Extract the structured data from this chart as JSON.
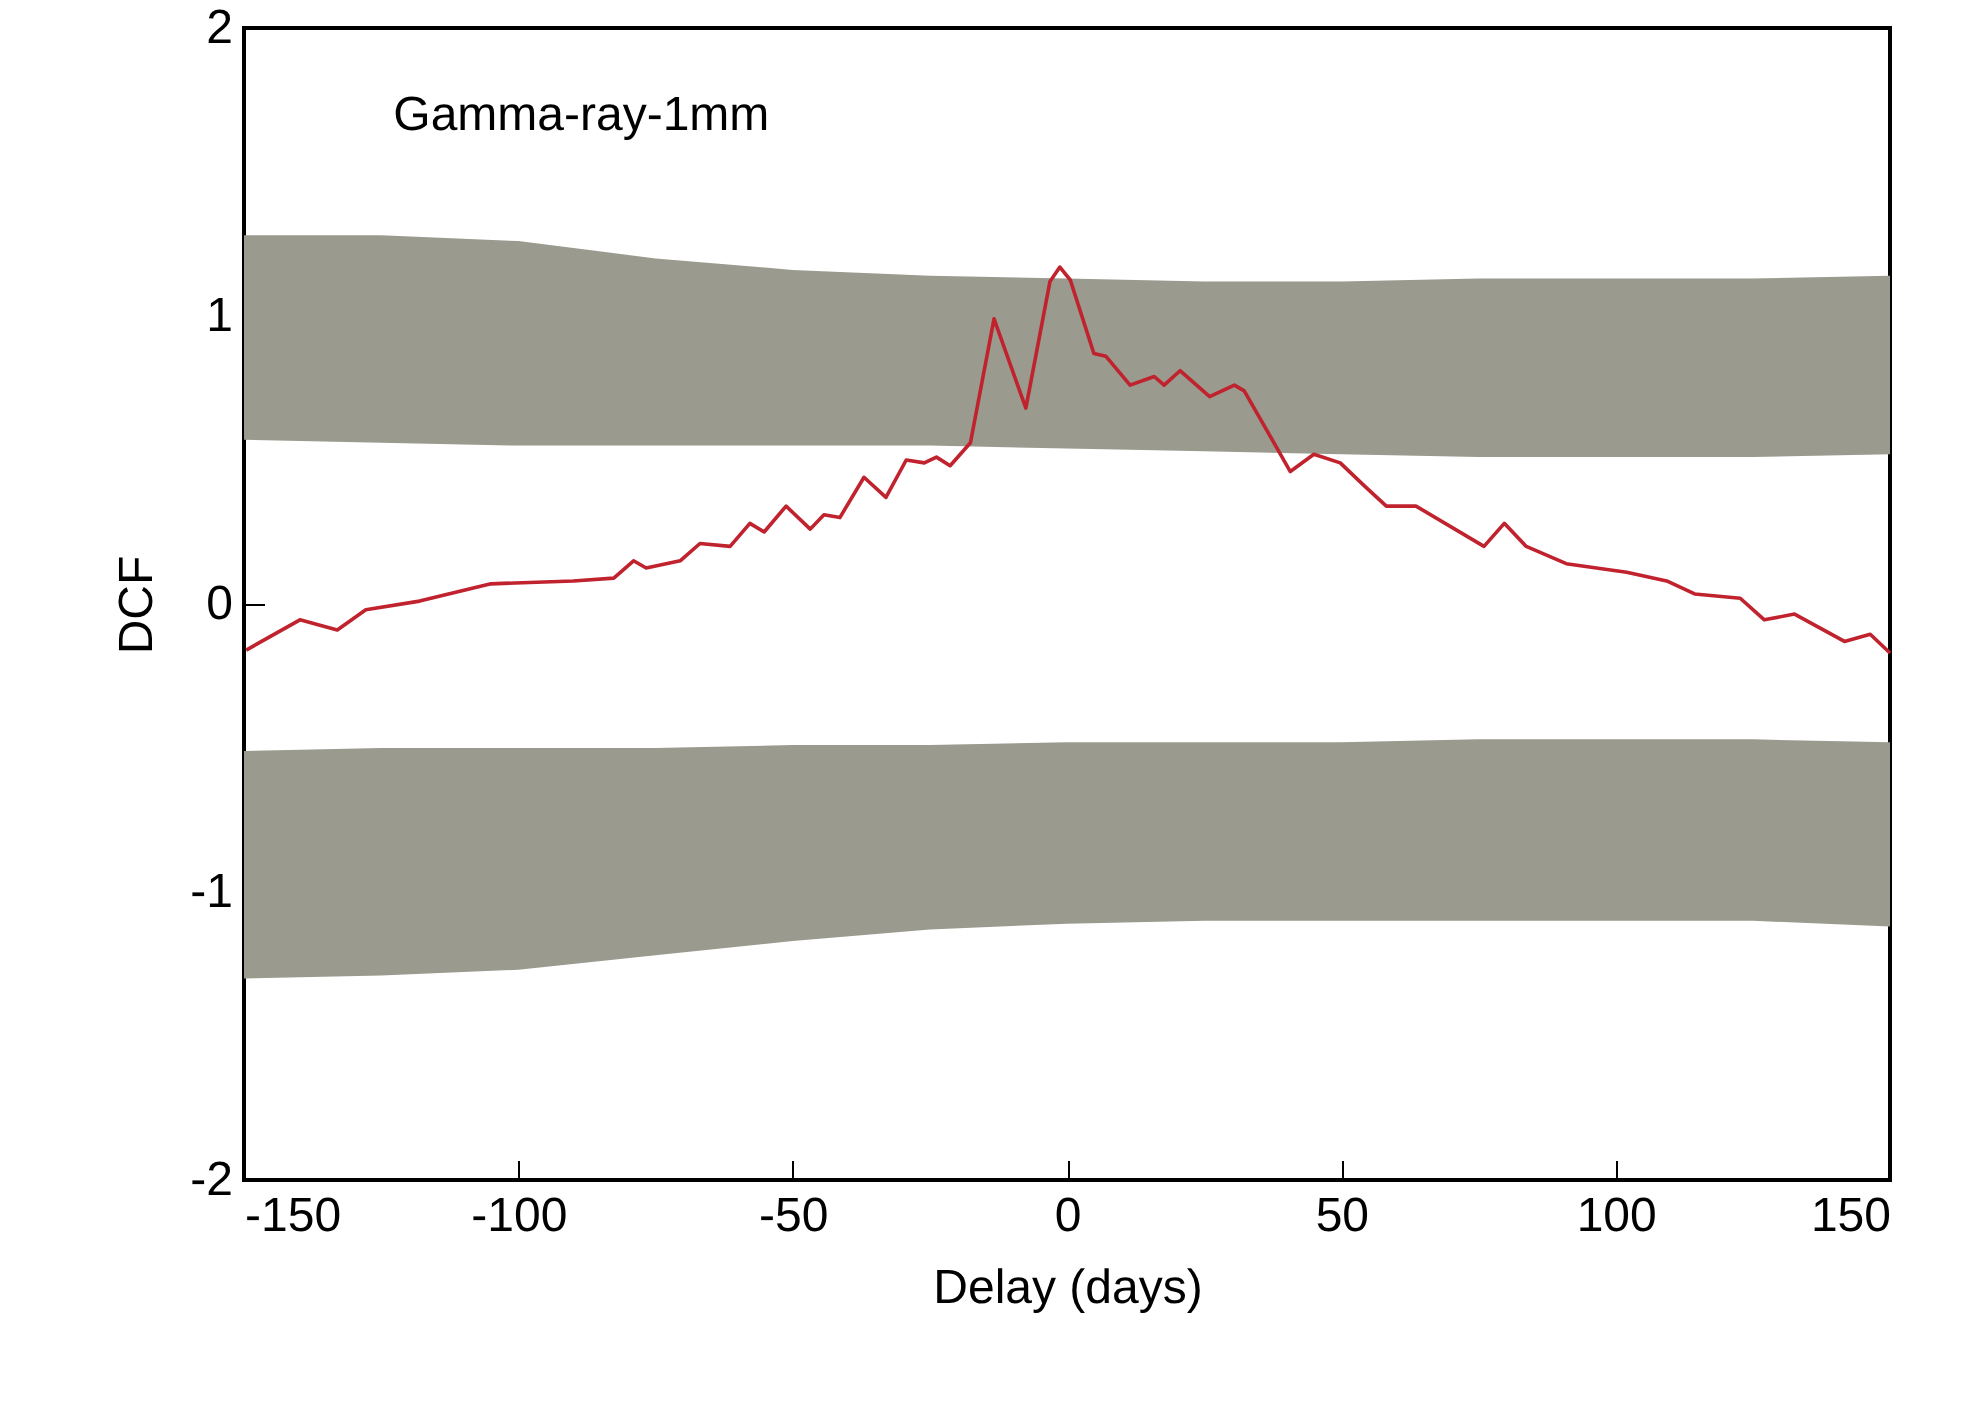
{
  "chart_data": {
    "type": "line",
    "title": "Gamma-ray-1mm",
    "xlabel": "Delay (days)",
    "ylabel": "DCF",
    "xlim": [
      -150,
      150
    ],
    "xticks": [
      -150,
      -100,
      -50,
      0,
      50,
      100,
      150
    ],
    "ylim": [
      -2,
      2
    ],
    "yticks": [
      -2,
      -1,
      0,
      1,
      2
    ],
    "series": [
      {
        "type": "area",
        "color": "#9a9a8e",
        "x": [
          -150,
          -125,
          -100,
          -75,
          -50,
          -25,
          0,
          25,
          50,
          75,
          100,
          125,
          150
        ],
        "values": [
          null,
          null,
          null,
          null,
          null,
          null,
          null,
          null,
          null,
          null,
          null,
          null,
          null
        ],
        "lower": [
          0.57,
          0.56,
          0.55,
          0.55,
          0.55,
          0.55,
          0.54,
          0.53,
          0.52,
          0.51,
          0.51,
          0.51,
          0.52
        ],
        "upper": [
          1.28,
          1.28,
          1.26,
          1.2,
          1.16,
          1.14,
          1.13,
          1.12,
          1.12,
          1.13,
          1.13,
          1.13,
          1.14
        ]
      },
      {
        "type": "area",
        "color": "#9a9a8e",
        "x": [
          -150,
          -125,
          -100,
          -75,
          -50,
          -25,
          0,
          25,
          50,
          75,
          100,
          125,
          150
        ],
        "values": [
          null,
          null,
          null,
          null,
          null,
          null,
          null,
          null,
          null,
          null,
          null,
          null,
          null
        ],
        "lower": [
          -1.3,
          -1.29,
          -1.27,
          -1.22,
          -1.17,
          -1.13,
          -1.11,
          -1.1,
          -1.1,
          -1.1,
          -1.1,
          -1.1,
          -1.12
        ],
        "upper": [
          -0.51,
          -0.5,
          -0.5,
          -0.5,
          -0.49,
          -0.49,
          -0.48,
          -0.48,
          -0.48,
          -0.47,
          -0.47,
          -0.47,
          -0.48
        ]
      },
      {
        "type": "line",
        "color": "#c0222e",
        "x": [
          -149.6,
          -139.8,
          -133,
          -127.8,
          -118,
          -105,
          -90,
          -82.6,
          -79,
          -76.7,
          -70.5,
          -66.9,
          -61.4,
          -57.8,
          -55.2,
          -51.2,
          -46.8,
          -44.3,
          -41.4,
          -37,
          -33,
          -29.3,
          -26,
          -23.8,
          -21.3,
          -17.6,
          -13.3,
          -7.5,
          -3.1,
          -1.3,
          0.6,
          4.9,
          7.1,
          11.5,
          15.9,
          17.7,
          20.6,
          26,
          30.5,
          32.3,
          40.7,
          45,
          49.8,
          54.2,
          58.2,
          63.6,
          76,
          79.7,
          83.7,
          91,
          102,
          109.3,
          114.4,
          122.7,
          127.1,
          132.6,
          141.7,
          146.4,
          150
        ],
        "values": [
          -0.16,
          -0.055,
          -0.09,
          -0.02,
          0.01,
          0.07,
          0.08,
          0.09,
          0.15,
          0.125,
          0.15,
          0.21,
          0.2,
          0.28,
          0.25,
          0.34,
          0.26,
          0.31,
          0.3,
          0.44,
          0.37,
          0.5,
          0.49,
          0.51,
          0.48,
          0.56,
          0.99,
          0.68,
          1.12,
          1.17,
          1.125,
          0.87,
          0.86,
          0.76,
          0.79,
          0.76,
          0.81,
          0.72,
          0.76,
          0.74,
          0.46,
          0.52,
          0.49,
          0.41,
          0.34,
          0.34,
          0.2,
          0.28,
          0.2,
          0.14,
          0.11,
          0.08,
          0.035,
          0.02,
          -0.055,
          -0.035,
          -0.13,
          -0.105,
          -0.17
        ]
      }
    ]
  }
}
